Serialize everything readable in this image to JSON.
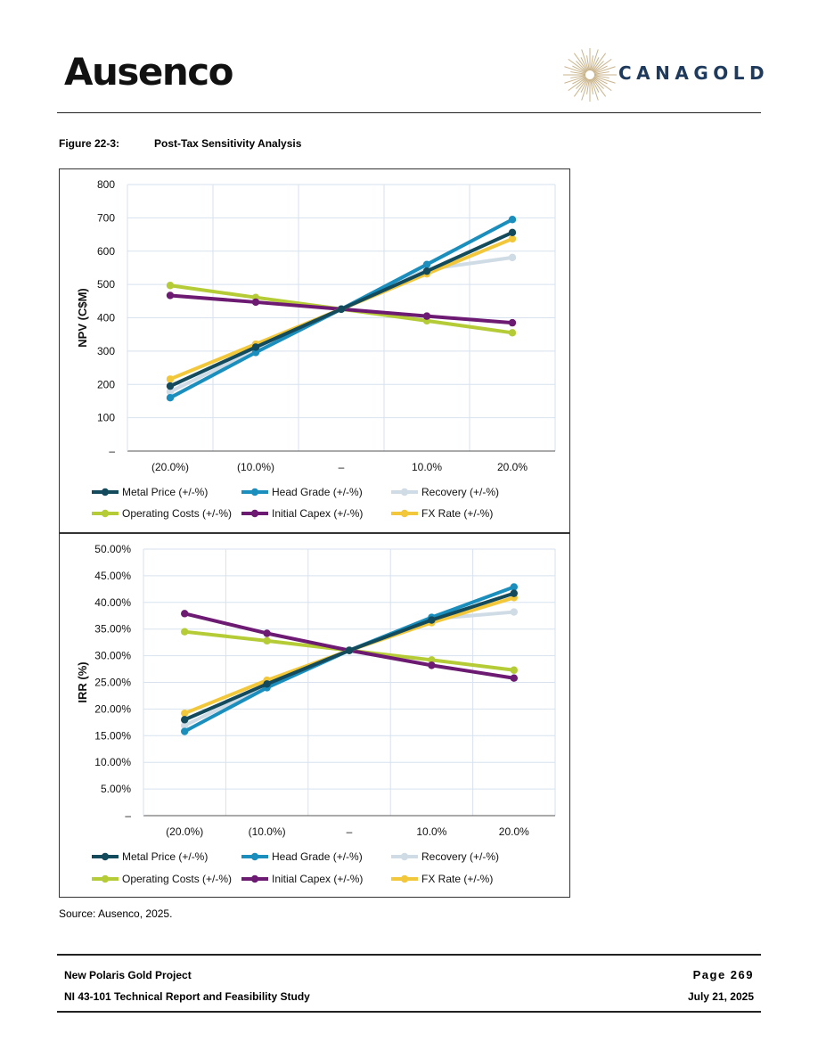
{
  "header": {
    "logo_left": "Ausenco",
    "logo_right": "CANAGOLD"
  },
  "figure": {
    "label": "Figure 22-3:",
    "title": "Post-Tax Sensitivity Analysis"
  },
  "source_note": "Source: Ausenco, 2025.",
  "footer": {
    "project": "New Polaris Gold Project",
    "report": "NI 43-101 Technical Report and Feasibility Study",
    "page": "Page 269",
    "date": "July 21, 2025"
  },
  "chart_data": [
    {
      "type": "line",
      "ylabel": "NPV (C$M)",
      "categories": [
        "(20.0%)",
        "(10.0%)",
        "–",
        "10.0%",
        "20.0%"
      ],
      "ylim": [
        0,
        800
      ],
      "yticks": [
        0,
        100,
        200,
        300,
        400,
        500,
        600,
        700,
        800
      ],
      "ytick_labels": [
        "–",
        "100",
        "200",
        "300",
        "400",
        "500",
        "600",
        "700",
        "800"
      ],
      "grid": true,
      "legend_position": "bottom",
      "series": [
        {
          "name": "Metal Price (+/-%)",
          "color": "#134a5c",
          "values": [
            195,
            312,
            426,
            540,
            656
          ]
        },
        {
          "name": "Head Grade (+/-%)",
          "color": "#1a8fbd",
          "values": [
            160,
            296,
            426,
            560,
            695
          ]
        },
        {
          "name": "Recovery (+/-%)",
          "color": "#cfdbe5",
          "values": [
            178,
            304,
            426,
            545,
            581
          ]
        },
        {
          "name": "Operating Costs (+/-%)",
          "color": "#b5cc36",
          "values": [
            497,
            461,
            426,
            391,
            355
          ]
        },
        {
          "name": "Initial Capex (+/-%)",
          "color": "#6d1a72",
          "values": [
            467,
            447,
            426,
            405,
            385
          ]
        },
        {
          "name": "FX Rate (+/-%)",
          "color": "#f2c73a",
          "values": [
            216,
            321,
            426,
            532,
            637
          ]
        }
      ]
    },
    {
      "type": "line",
      "ylabel": "IRR (%)",
      "categories": [
        "(20.0%)",
        "(10.0%)",
        "–",
        "10.0%",
        "20.0%"
      ],
      "ylim": [
        0,
        50
      ],
      "yticks": [
        0,
        5,
        10,
        15,
        20,
        25,
        30,
        35,
        40,
        45,
        50
      ],
      "ytick_labels": [
        "–",
        "5.00%",
        "10.00%",
        "15.00%",
        "20.00%",
        "25.00%",
        "30.00%",
        "35.00%",
        "40.00%",
        "45.00%",
        "50.00%"
      ],
      "grid": true,
      "legend_position": "bottom",
      "series": [
        {
          "name": "Metal Price (+/-%)",
          "color": "#134a5c",
          "values": [
            18.0,
            24.7,
            31.0,
            36.7,
            41.7
          ]
        },
        {
          "name": "Head Grade (+/-%)",
          "color": "#1a8fbd",
          "values": [
            15.8,
            24.0,
            31.0,
            37.2,
            42.9
          ]
        },
        {
          "name": "Recovery (+/-%)",
          "color": "#cfdbe5",
          "values": [
            16.9,
            24.4,
            31.0,
            36.9,
            38.2
          ]
        },
        {
          "name": "Operating Costs (+/-%)",
          "color": "#b5cc36",
          "values": [
            34.5,
            32.8,
            31.0,
            29.2,
            27.3
          ]
        },
        {
          "name": "Initial Capex (+/-%)",
          "color": "#6d1a72",
          "values": [
            37.9,
            34.2,
            31.0,
            28.2,
            25.8
          ]
        },
        {
          "name": "FX Rate (+/-%)",
          "color": "#f2c73a",
          "values": [
            19.2,
            25.4,
            31.0,
            36.2,
            40.9
          ]
        }
      ]
    }
  ]
}
